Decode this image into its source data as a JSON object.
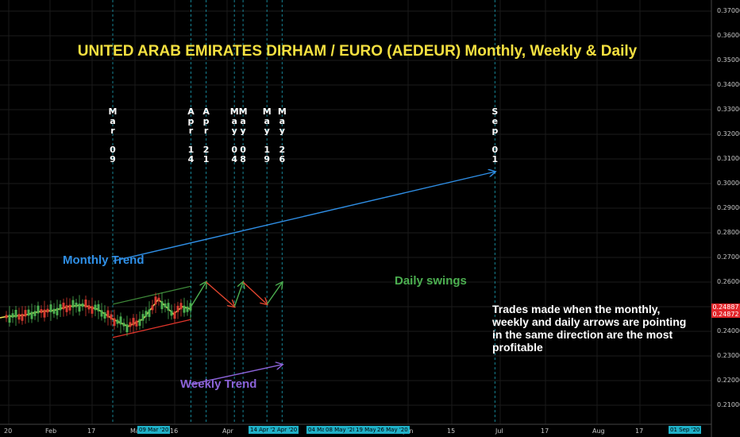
{
  "title": "UNITED ARAB EMIRATES DIRHAM  /  EURO (AEDEUR) Monthly, Weekly & Daily",
  "note": "Trades made when the monthly, weekly and daily arrows are pointing in the same direction are the most profitable",
  "labels": {
    "monthly": "Monthly Trend",
    "weekly": "Weekly Trend",
    "daily": "Daily swings"
  },
  "colors": {
    "background": "#000000",
    "title": "#f4e040",
    "monthly": "#2f8fe6",
    "weekly": "#8c63d9",
    "daily_label": "#4caf50",
    "swing_up": "#4caf50",
    "swing_down": "#e0452f",
    "price_line": "#e8e05a",
    "vline": "#1fb0c7",
    "price_tag": "#e3262b"
  },
  "chart_data": {
    "type": "line",
    "ylim": [
      0.205,
      0.372
    ],
    "y_ticks": [
      "0.37000",
      "0.36000",
      "0.35000",
      "0.34000",
      "0.33000",
      "0.32000",
      "0.31000",
      "0.30000",
      "0.29000",
      "0.28000",
      "0.27000",
      "0.26000",
      "0.25000",
      "0.24000",
      "0.23000",
      "0.22000",
      "0.21000"
    ],
    "x_ticks": [
      "20",
      "Feb",
      "17",
      "Mar",
      "16",
      "Apr",
      "Jun",
      "15",
      "Jul",
      "17",
      "Aug",
      "17"
    ],
    "x_date_badges": [
      "09 Mar '20",
      "14 Apr '20",
      "Apr '20",
      "04 Ma",
      "08 May '20",
      "19 May",
      "26 May '20",
      "01 Sep '20"
    ],
    "price_tags": [
      "0.24887",
      "0.24872"
    ],
    "vertical_dates": [
      {
        "month": "Mar",
        "day": "09"
      },
      {
        "month": "Apr",
        "day": "14"
      },
      {
        "month": "Apr",
        "day": "21"
      },
      {
        "month": "May",
        "day": "04"
      },
      {
        "month": "May",
        "day": "08"
      },
      {
        "month": "May",
        "day": "19"
      },
      {
        "month": "May",
        "day": "26"
      },
      {
        "month": "Sep",
        "day": "01"
      }
    ],
    "monthly_trend": {
      "from": {
        "date": "2020-03-09",
        "value": 0.2685
      },
      "to": {
        "date": "2020-09-01",
        "value": 0.3048
      }
    },
    "weekly_trend": {
      "from": {
        "date": "2020-04-14",
        "value": 0.2185
      },
      "to": {
        "date": "2020-05-26",
        "value": 0.2265
      }
    },
    "daily_swings": [
      {
        "date": "2020-04-14",
        "value": 0.25
      },
      {
        "date": "2020-04-21",
        "value": 0.26
      },
      {
        "date": "2020-05-04",
        "value": 0.25
      },
      {
        "date": "2020-05-08",
        "value": 0.26
      },
      {
        "date": "2020-05-19",
        "value": 0.251
      },
      {
        "date": "2020-05-26",
        "value": 0.2598
      }
    ],
    "upper_channel": {
      "from": {
        "date": "2020-03-09",
        "value": 0.251
      },
      "to": {
        "date": "2020-04-14",
        "value": 0.2583
      }
    },
    "lower_channel": {
      "from": {
        "date": "2020-03-09",
        "value": 0.2375
      },
      "to": {
        "date": "2020-04-14",
        "value": 0.2448
      }
    },
    "price_series": [
      {
        "date": "2020-01-20",
        "value": 0.246
      },
      {
        "date": "2020-01-28",
        "value": 0.2465
      },
      {
        "date": "2020-02-04",
        "value": 0.248
      },
      {
        "date": "2020-02-11",
        "value": 0.2485
      },
      {
        "date": "2020-02-17",
        "value": 0.25
      },
      {
        "date": "2020-02-24",
        "value": 0.2507
      },
      {
        "date": "2020-03-02",
        "value": 0.249
      },
      {
        "date": "2020-03-09",
        "value": 0.245
      },
      {
        "date": "2020-03-16",
        "value": 0.242
      },
      {
        "date": "2020-03-23",
        "value": 0.245
      },
      {
        "date": "2020-03-30",
        "value": 0.253
      },
      {
        "date": "2020-04-06",
        "value": 0.247
      },
      {
        "date": "2020-04-10",
        "value": 0.25
      },
      {
        "date": "2020-04-14",
        "value": 0.249
      }
    ]
  }
}
